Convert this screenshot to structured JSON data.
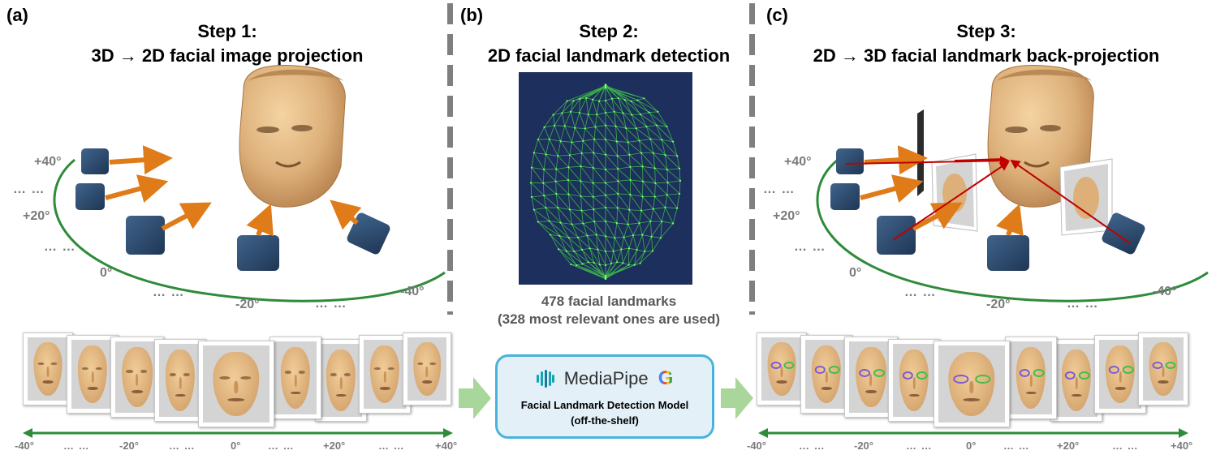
{
  "panels": {
    "a": {
      "label": "(a)",
      "title_line1": "Step 1:",
      "title_line2": "3D → 2D facial image projection",
      "angles": {
        "p40": "+40°",
        "p20": "+20°",
        "zero": "0°",
        "m20": "-20°",
        "m40": "-40°"
      },
      "dots": "… …"
    },
    "b": {
      "label": "(b)",
      "title_line1": "Step 2:",
      "title_line2": "2D facial landmark detection",
      "caption_line1": "478 facial landmarks",
      "caption_line2": "(328 most relevant ones are used)",
      "mediapipe": {
        "name": "MediaPipe",
        "google": "G",
        "model_line1": "Facial Landmark Detection Model",
        "model_line2": "(off-the-shelf)"
      }
    },
    "c": {
      "label": "(c)",
      "title_line1": "Step 3:",
      "title_line2": "2D → 3D facial landmark back-projection",
      "angles": {
        "p40": "+40°",
        "p20": "+20°",
        "zero": "0°",
        "m20": "-20°",
        "m40": "-40°"
      },
      "dots": "… …"
    }
  },
  "strip_axis": {
    "labels": [
      "-40°",
      "… …",
      "-20°",
      "… …",
      "0°",
      "… …",
      "+20°",
      "… …",
      "+40°"
    ]
  },
  "colors": {
    "skin": "#ddb07a",
    "camera": "#2f4d6e",
    "ray_orange": "#e07b1a",
    "ray_red": "#c00000",
    "arc_green": "#2e8b3a",
    "mesh_bg": "#1d2f5c",
    "mesh_line": "#3fbf4a",
    "mediapipe_border": "#49b3dc",
    "step_arrow": "#a9d79b"
  }
}
